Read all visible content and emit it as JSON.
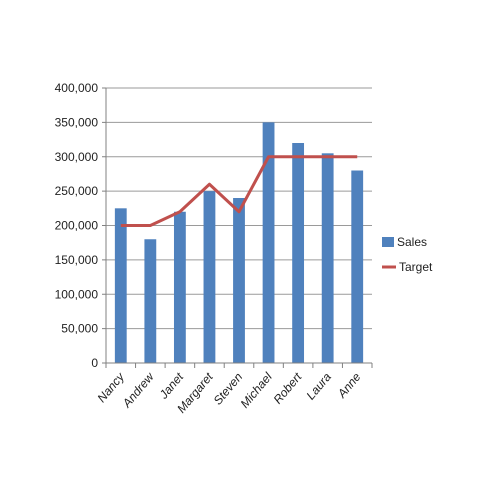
{
  "chart_data": {
    "type": "bar",
    "categories": [
      "Nancy",
      "Andrew",
      "Janet",
      "Margaret",
      "Steven",
      "Michael",
      "Robert",
      "Laura",
      "Anne"
    ],
    "series": [
      {
        "name": "Sales",
        "type": "bar",
        "color": "#4f81bd",
        "values": [
          225000,
          180000,
          220000,
          250000,
          240000,
          350000,
          320000,
          305000,
          280000
        ]
      },
      {
        "name": "Target",
        "type": "line",
        "color": "#c0504d",
        "values": [
          200000,
          200000,
          220000,
          260000,
          220000,
          300000,
          300000,
          300000,
          300000
        ]
      }
    ],
    "title": "",
    "xlabel": "",
    "ylabel": "",
    "ylim": [
      0,
      400000
    ],
    "yticks": [
      0,
      50000,
      100000,
      150000,
      200000,
      250000,
      300000,
      350000,
      400000
    ],
    "ytick_labels": [
      "0",
      "50,000",
      "100,000",
      "150,000",
      "200,000",
      "250,000",
      "300,000",
      "350,000",
      "400,000"
    ],
    "grid": true,
    "legend_position": "right"
  }
}
